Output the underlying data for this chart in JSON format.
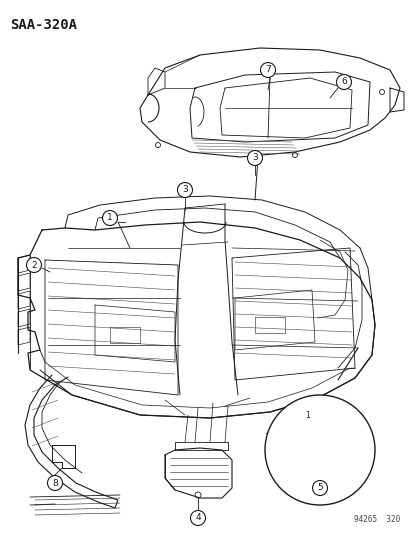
{
  "title": "SAA-320A",
  "part_number": "94265  320",
  "bg": "#ffffff",
  "lc": "#1a1a1a",
  "fig_width": 4.14,
  "fig_height": 5.33,
  "dpi": 100
}
